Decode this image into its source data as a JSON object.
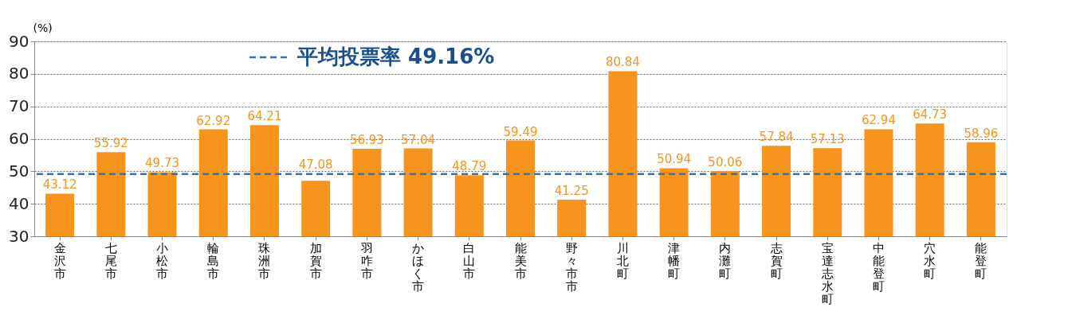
{
  "chart_data": {
    "type": "bar",
    "ylabel": "(%)",
    "categories": [
      "金沢市",
      "七尾市",
      "小松市",
      "輪島市",
      "珠洲市",
      "加賀市",
      "羽咋市",
      "かほく市",
      "白山市",
      "能美市",
      "野々市市",
      "川北町",
      "津幡町",
      "内灘町",
      "志賀町",
      "宝達志水町",
      "中能登町",
      "穴水町",
      "能登町"
    ],
    "values": [
      43.12,
      55.92,
      49.73,
      62.92,
      64.21,
      47.08,
      56.93,
      57.04,
      48.79,
      59.49,
      41.25,
      80.84,
      50.94,
      50.06,
      57.84,
      57.13,
      62.94,
      64.73,
      58.96
    ],
    "color": "#f7941d",
    "ylim": [
      30,
      90
    ],
    "yticks": [
      30,
      40,
      50,
      60,
      70,
      80,
      90
    ],
    "grid": "y",
    "data_labels": true,
    "ref_lines": [
      {
        "axis": "y",
        "value": 49.16,
        "label": "平均投票率 49.16%",
        "color": "#2e75b6",
        "line_style": "dashed"
      }
    ]
  }
}
